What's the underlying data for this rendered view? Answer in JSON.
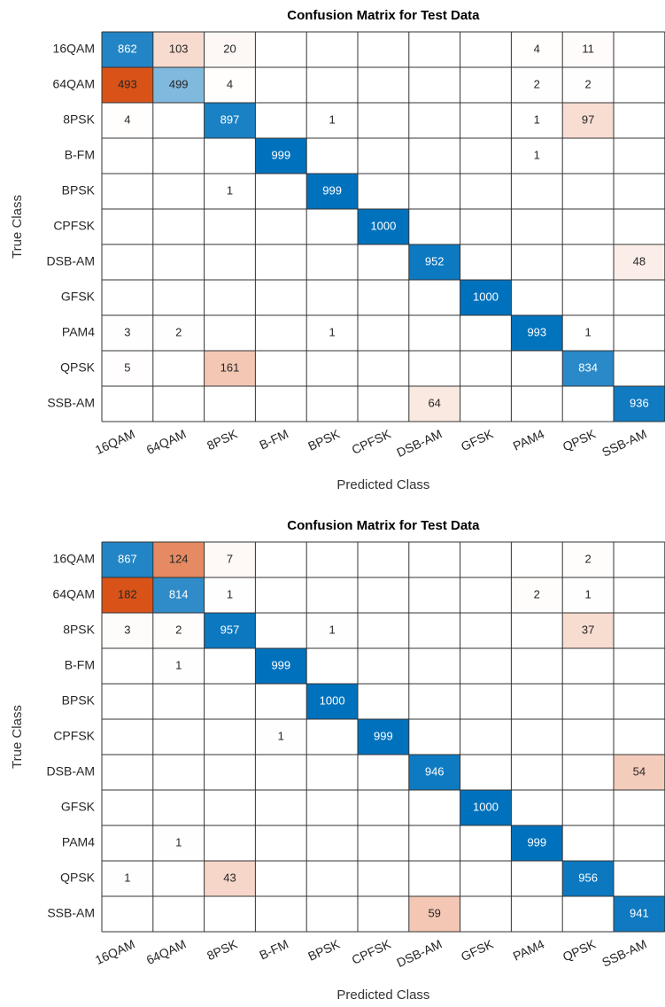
{
  "chart_data": [
    {
      "type": "heatmap",
      "title": "Confusion Matrix for Test Data",
      "x_label": "Predicted Class",
      "y_label": "True Class",
      "categories": [
        "16QAM",
        "64QAM",
        "8PSK",
        "B-FM",
        "BPSK",
        "CPFSK",
        "DSB-AM",
        "GFSK",
        "PAM4",
        "QPSK",
        "SSB-AM"
      ],
      "diagonal_color": "#0072bd",
      "off_diagonal_color": "#d95319",
      "values": [
        [
          862,
          103,
          20,
          null,
          null,
          null,
          null,
          null,
          4,
          11,
          null
        ],
        [
          493,
          499,
          4,
          null,
          null,
          null,
          null,
          null,
          2,
          2,
          null
        ],
        [
          4,
          null,
          897,
          null,
          1,
          null,
          null,
          null,
          1,
          97,
          null
        ],
        [
          null,
          null,
          null,
          999,
          null,
          null,
          null,
          null,
          1,
          null,
          null
        ],
        [
          null,
          null,
          1,
          null,
          999,
          null,
          null,
          null,
          null,
          null,
          null
        ],
        [
          null,
          null,
          null,
          null,
          null,
          1000,
          null,
          null,
          null,
          null,
          null
        ],
        [
          null,
          null,
          null,
          null,
          null,
          null,
          952,
          null,
          null,
          null,
          48
        ],
        [
          null,
          null,
          null,
          null,
          null,
          null,
          null,
          1000,
          null,
          null,
          null
        ],
        [
          3,
          2,
          null,
          null,
          1,
          null,
          null,
          null,
          993,
          1,
          null
        ],
        [
          5,
          null,
          161,
          null,
          null,
          null,
          null,
          null,
          null,
          834,
          null
        ],
        [
          null,
          null,
          null,
          null,
          null,
          null,
          64,
          null,
          null,
          null,
          936
        ]
      ]
    },
    {
      "type": "heatmap",
      "title": "Confusion Matrix for Test Data",
      "x_label": "Predicted Class",
      "y_label": "True Class",
      "categories": [
        "16QAM",
        "64QAM",
        "8PSK",
        "B-FM",
        "BPSK",
        "CPFSK",
        "DSB-AM",
        "GFSK",
        "PAM4",
        "QPSK",
        "SSB-AM"
      ],
      "diagonal_color": "#0072bd",
      "off_diagonal_color": "#d95319",
      "values": [
        [
          867,
          124,
          7,
          null,
          null,
          null,
          null,
          null,
          null,
          2,
          null
        ],
        [
          182,
          814,
          1,
          null,
          null,
          null,
          null,
          null,
          2,
          1,
          null
        ],
        [
          3,
          2,
          957,
          null,
          1,
          null,
          null,
          null,
          null,
          37,
          null
        ],
        [
          null,
          1,
          null,
          999,
          null,
          null,
          null,
          null,
          null,
          null,
          null
        ],
        [
          null,
          null,
          null,
          null,
          1000,
          null,
          null,
          null,
          null,
          null,
          null
        ],
        [
          null,
          null,
          null,
          1,
          null,
          999,
          null,
          null,
          null,
          null,
          null
        ],
        [
          null,
          null,
          null,
          null,
          null,
          null,
          946,
          null,
          null,
          null,
          54
        ],
        [
          null,
          null,
          null,
          null,
          null,
          null,
          null,
          1000,
          null,
          null,
          null
        ],
        [
          null,
          1,
          null,
          null,
          null,
          null,
          null,
          null,
          999,
          null,
          null
        ],
        [
          1,
          null,
          43,
          null,
          null,
          null,
          null,
          null,
          null,
          956,
          null
        ],
        [
          null,
          null,
          null,
          null,
          null,
          null,
          59,
          null,
          null,
          null,
          941
        ]
      ]
    }
  ]
}
